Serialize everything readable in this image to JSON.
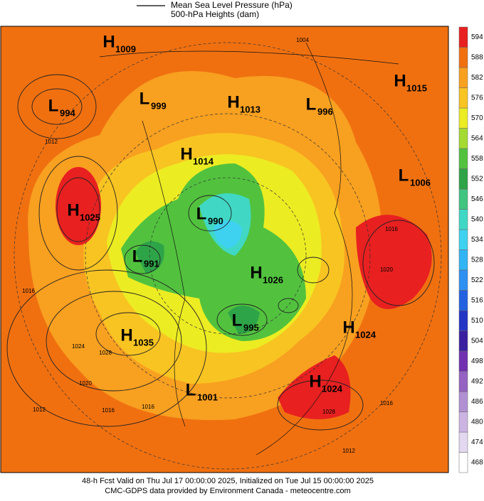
{
  "legend": {
    "line1": "Mean Sea Level Pressure (hPa)",
    "line2": "500-hPa Heights (dam)"
  },
  "centers": [
    {
      "kind": "H",
      "value": "1009"
    },
    {
      "kind": "L",
      "value": "994"
    },
    {
      "kind": "L",
      "value": "999"
    },
    {
      "kind": "H",
      "value": "1013"
    },
    {
      "kind": "L",
      "value": "996"
    },
    {
      "kind": "H",
      "value": "1015"
    },
    {
      "kind": "H",
      "value": "1014"
    },
    {
      "kind": "L",
      "value": "1006"
    },
    {
      "kind": "H",
      "value": "1025"
    },
    {
      "kind": "L",
      "value": "990"
    },
    {
      "kind": "L",
      "value": "991"
    },
    {
      "kind": "H",
      "value": "1026"
    },
    {
      "kind": "L",
      "value": "995"
    },
    {
      "kind": "H",
      "value": "1024"
    },
    {
      "kind": "H",
      "value": "1035"
    },
    {
      "kind": "H",
      "value": "1024"
    },
    {
      "kind": "L",
      "value": "1001"
    }
  ],
  "contour_labels": [
    "1004",
    "1012",
    "1016",
    "1024",
    "1028",
    "1020",
    "1016",
    "1016",
    "1012",
    "1028",
    "1016",
    "1012",
    "1020",
    "1016"
  ],
  "colorbar": {
    "levels": [
      {
        "value": 468,
        "color": "#ffffff"
      },
      {
        "value": 474,
        "color": "#e4d8f0"
      },
      {
        "value": 480,
        "color": "#cbb4e2"
      },
      {
        "value": 486,
        "color": "#b090d2"
      },
      {
        "value": 492,
        "color": "#9462c2"
      },
      {
        "value": 498,
        "color": "#7030b0"
      },
      {
        "value": 504,
        "color": "#3a20a0"
      },
      {
        "value": 510,
        "color": "#2434c4"
      },
      {
        "value": 516,
        "color": "#2262e0"
      },
      {
        "value": 522,
        "color": "#2e90f0"
      },
      {
        "value": 528,
        "color": "#30b4f4"
      },
      {
        "value": 534,
        "color": "#3ed2f0"
      },
      {
        "value": 540,
        "color": "#40d8c4"
      },
      {
        "value": 546,
        "color": "#40c480"
      },
      {
        "value": 552,
        "color": "#2ea448"
      },
      {
        "value": 558,
        "color": "#52c23e"
      },
      {
        "value": 564,
        "color": "#a4da32"
      },
      {
        "value": 570,
        "color": "#ecec22"
      },
      {
        "value": 576,
        "color": "#f8c422"
      },
      {
        "value": 582,
        "color": "#f8a020"
      },
      {
        "value": 588,
        "color": "#f07010"
      },
      {
        "value": 594,
        "color": "#e82020"
      }
    ]
  },
  "footer": {
    "line1": "48-h Fcst Valid on Thu Jul 17 00:00:00 2025, Initialized on Tue Jul 15 00:00:00 2025",
    "line2": "CMC-GDPS data provided by Environment Canada - meteocentre.com"
  }
}
